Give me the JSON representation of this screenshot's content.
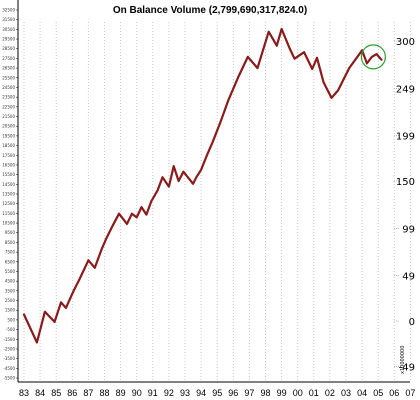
{
  "chart_data": {
    "type": "line",
    "title": "On Balance Volume (2,799,690,317,824.0)",
    "xlabel": "",
    "ylabel": "",
    "right_axis_unit": "x10000000",
    "x_tick_labels": [
      "83",
      "84",
      "85",
      "86",
      "87",
      "88",
      "89",
      "90",
      "91",
      "92",
      "93",
      "94",
      "95",
      "96",
      "97",
      "98",
      "99",
      "00",
      "01",
      "02",
      "03",
      "04",
      "05",
      "06",
      "07"
    ],
    "right_tick_labels": [
      "300",
      "249",
      "199",
      "150",
      "99",
      "49",
      "0",
      "-49"
    ],
    "right_tick_values": [
      300,
      249,
      199,
      150,
      99,
      49,
      0,
      -49
    ],
    "left_tick_labels": [
      "32500",
      "31500",
      "30500",
      "29500",
      "28500",
      "27500",
      "26500",
      "25500",
      "24500",
      "23500",
      "22500",
      "21500",
      "20500",
      "19500",
      "18500",
      "17500",
      "16500",
      "15500",
      "14500",
      "13500",
      "12500",
      "11500",
      "10500",
      "9500",
      "8500",
      "7500",
      "6500",
      "5500",
      "4500",
      "3500",
      "2500",
      "1500",
      "500",
      "-500",
      "-1500",
      "-2500",
      "-3500",
      "-4500",
      "-5500"
    ],
    "ylim": [
      -60,
      340
    ],
    "grid": "vertical dotted",
    "series": [
      {
        "color": "#8B1A1A",
        "x": [
          83.0,
          83.8,
          84.3,
          84.9,
          85.3,
          85.6,
          86.1,
          86.4,
          87.0,
          87.4,
          87.8,
          88.1,
          88.5,
          88.9,
          89.4,
          89.7,
          90.0,
          90.3,
          90.6,
          90.9,
          91.3,
          91.6,
          92.0,
          92.3,
          92.6,
          92.9,
          93.5,
          93.7,
          94.0,
          94.4,
          94.7,
          95.2,
          95.7,
          96.3,
          96.9,
          97.5,
          98.2,
          98.7,
          99.0,
          99.5,
          99.8,
          100.4,
          100.9,
          101.2,
          101.6,
          102.1,
          102.5,
          103.2,
          104.0,
          104.3,
          104.6,
          104.9,
          105.2
        ],
        "y": [
          7,
          -23,
          10,
          -1,
          20,
          14,
          33,
          43,
          65,
          57,
          76,
          88,
          102,
          115,
          104,
          115,
          111,
          122,
          114,
          128,
          140,
          154,
          144,
          166,
          150,
          160,
          147,
          154,
          162,
          179,
          191,
          213,
          237,
          261,
          283,
          271,
          310,
          295,
          313,
          292,
          281,
          288,
          270,
          282,
          256,
          239,
          247,
          271,
          290,
          276,
          283,
          286,
          280
        ]
      }
    ],
    "annotations": [
      {
        "type": "circle",
        "color": "#2e9b2e",
        "x": 104.7,
        "y": 283
      }
    ]
  }
}
